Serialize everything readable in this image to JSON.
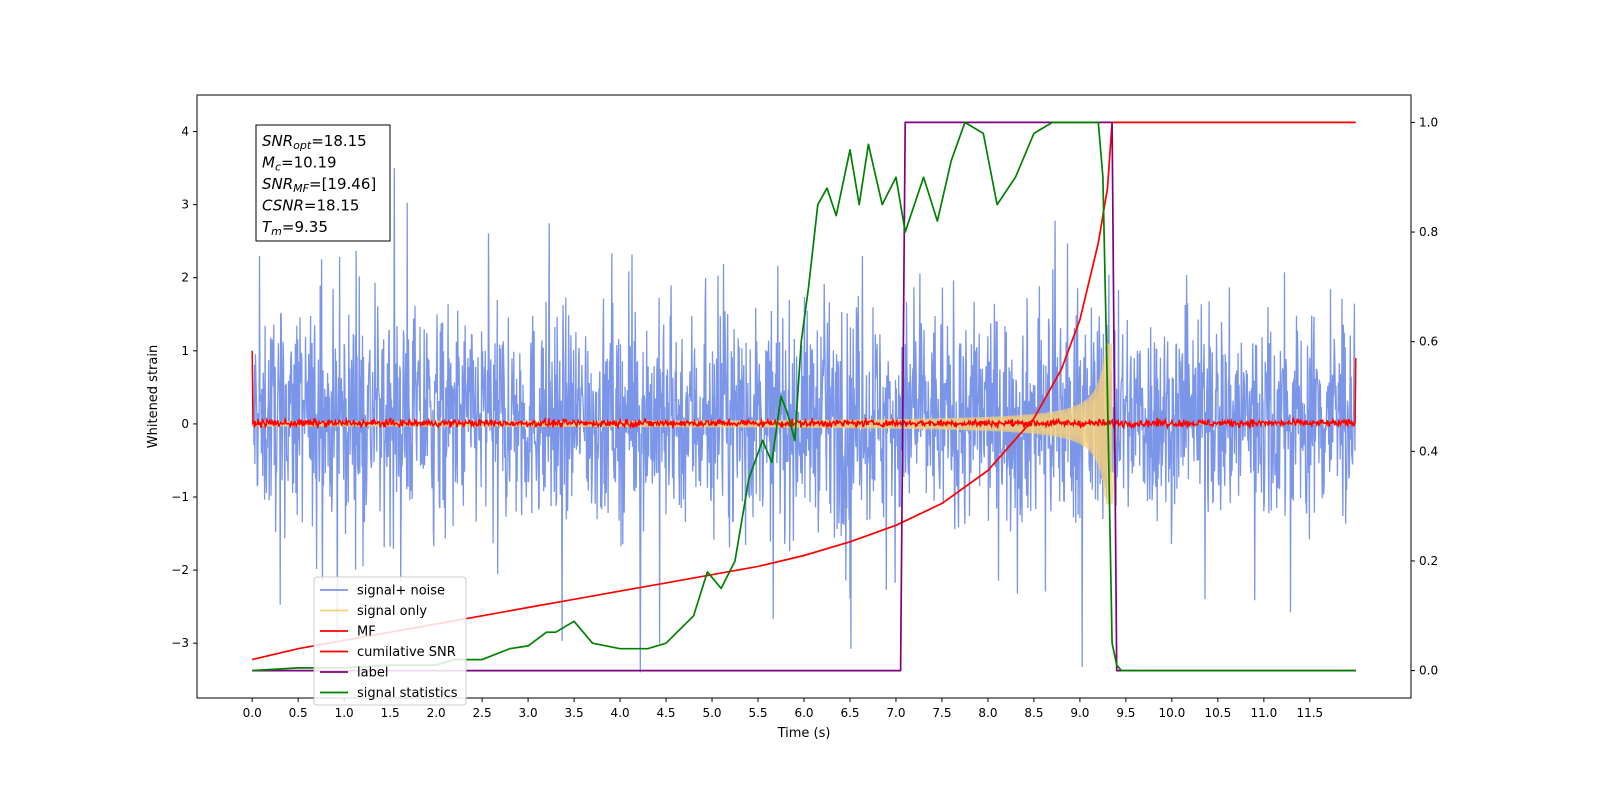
{
  "chart_data": {
    "type": "line",
    "title": "",
    "xlabel": "Time (s)",
    "ylabel": "Whitened strain",
    "xlim": [
      -0.6,
      12.6
    ],
    "ylim": [
      -3.75,
      4.5
    ],
    "ylim_right": [
      -0.05,
      1.05
    ],
    "xticks": [
      0.0,
      0.5,
      1.0,
      1.5,
      2.0,
      2.5,
      3.0,
      3.5,
      4.0,
      4.5,
      5.0,
      5.5,
      6.0,
      6.5,
      7.0,
      7.5,
      8.0,
      8.5,
      9.0,
      9.5,
      10.0,
      10.5,
      11.0,
      11.5
    ],
    "xtick_labels": [
      "0.0",
      "0.5",
      "1.0",
      "1.5",
      "2.0",
      "2.5",
      "3.0",
      "3.5",
      "4.0",
      "4.5",
      "5.0",
      "5.5",
      "6.0",
      "6.5",
      "7.0",
      "7.5",
      "8.0",
      "8.5",
      "9.0",
      "9.5",
      "10.0",
      "10.5",
      "11.0",
      "11.5"
    ],
    "yticks_left": [
      -3,
      -2,
      -1,
      0,
      1,
      2,
      3,
      4
    ],
    "ytick_labels_left": [
      "−3",
      "−2",
      "−1",
      "0",
      "1",
      "2",
      "3",
      "4"
    ],
    "yticks_right": [
      0.0,
      0.2,
      0.4,
      0.6,
      0.8,
      1.0
    ],
    "ytick_labels_right": [
      "0.0",
      "0.2",
      "0.4",
      "0.6",
      "0.8",
      "1.0"
    ],
    "grid": false,
    "legend_position": "lower-left",
    "annotation": [
      {
        "sym": "SNR",
        "sub": "opt",
        "val": "=18.15"
      },
      {
        "sym": "M",
        "sub": "c",
        "val": "=10.19"
      },
      {
        "sym": "SNR",
        "sub": "MF",
        "val": "=[19.46]"
      },
      {
        "sym": "CSNR",
        "sub": "",
        "val": "=18.15"
      },
      {
        "sym": "T",
        "sub": "m",
        "val": "=9.35"
      }
    ],
    "series": [
      {
        "name": "signal+ noise",
        "color": "#7b96e8",
        "axis": "left",
        "kind": "noise",
        "x_range": [
          0.0,
          12.0
        ],
        "typical_range": [
          -1.6,
          1.9
        ],
        "extremes": [
          -3.4,
          3.5
        ]
      },
      {
        "name": "signal only",
        "color": "#f5cf7a",
        "axis": "left",
        "kind": "chirp",
        "x_range": [
          0.0,
          9.35
        ],
        "peak_amplitude": 1.1,
        "t_merge": 9.35
      },
      {
        "name": "MF",
        "color": "#ff0000",
        "axis": "left",
        "kind": "noise",
        "x_range": [
          0.0,
          12.0
        ],
        "typical_range": [
          -0.08,
          0.1
        ],
        "endpoints": [
          1.0,
          0.9
        ]
      },
      {
        "name": "cumilative SNR",
        "color": "#ff0000",
        "axis": "right",
        "x": [
          0.0,
          0.5,
          1.0,
          1.5,
          2.0,
          2.5,
          3.0,
          3.5,
          4.0,
          4.5,
          5.0,
          5.5,
          6.0,
          6.5,
          7.0,
          7.5,
          8.0,
          8.5,
          8.8,
          9.0,
          9.2,
          9.3,
          9.35,
          12.0
        ],
        "y": [
          0.02,
          0.04,
          0.055,
          0.07,
          0.085,
          0.1,
          0.115,
          0.13,
          0.145,
          0.16,
          0.175,
          0.19,
          0.21,
          0.235,
          0.265,
          0.305,
          0.365,
          0.46,
          0.55,
          0.64,
          0.78,
          0.88,
          1.0,
          1.0
        ]
      },
      {
        "name": "label",
        "color": "#800080",
        "axis": "right",
        "x": [
          0.0,
          7.05,
          7.1,
          9.35,
          9.4,
          12.0
        ],
        "y": [
          0.0,
          0.0,
          1.0,
          1.0,
          0.0,
          0.0
        ]
      },
      {
        "name": "signal statistics",
        "color": "#008000",
        "axis": "right",
        "x": [
          0.0,
          0.5,
          1.0,
          1.5,
          2.0,
          2.2,
          2.5,
          2.8,
          3.0,
          3.2,
          3.3,
          3.5,
          3.7,
          4.0,
          4.3,
          4.5,
          4.8,
          4.95,
          5.1,
          5.25,
          5.4,
          5.55,
          5.65,
          5.75,
          5.82,
          5.9,
          5.97,
          6.05,
          6.15,
          6.25,
          6.35,
          6.5,
          6.6,
          6.7,
          6.85,
          7.0,
          7.1,
          7.3,
          7.45,
          7.6,
          7.75,
          7.95,
          8.1,
          8.3,
          8.5,
          8.7,
          9.0,
          9.2,
          9.25,
          9.3,
          9.35,
          9.4,
          9.45,
          12.0
        ],
        "y": [
          0.0,
          0.005,
          0.005,
          0.01,
          0.01,
          0.02,
          0.02,
          0.04,
          0.045,
          0.07,
          0.07,
          0.09,
          0.05,
          0.04,
          0.04,
          0.05,
          0.1,
          0.18,
          0.15,
          0.2,
          0.35,
          0.42,
          0.38,
          0.5,
          0.47,
          0.42,
          0.6,
          0.7,
          0.85,
          0.88,
          0.83,
          0.95,
          0.85,
          0.96,
          0.85,
          0.9,
          0.8,
          0.9,
          0.82,
          0.93,
          1.0,
          0.98,
          0.85,
          0.9,
          0.98,
          1.0,
          1.0,
          1.0,
          0.9,
          0.5,
          0.05,
          0.01,
          0.0,
          0.0
        ]
      }
    ]
  }
}
